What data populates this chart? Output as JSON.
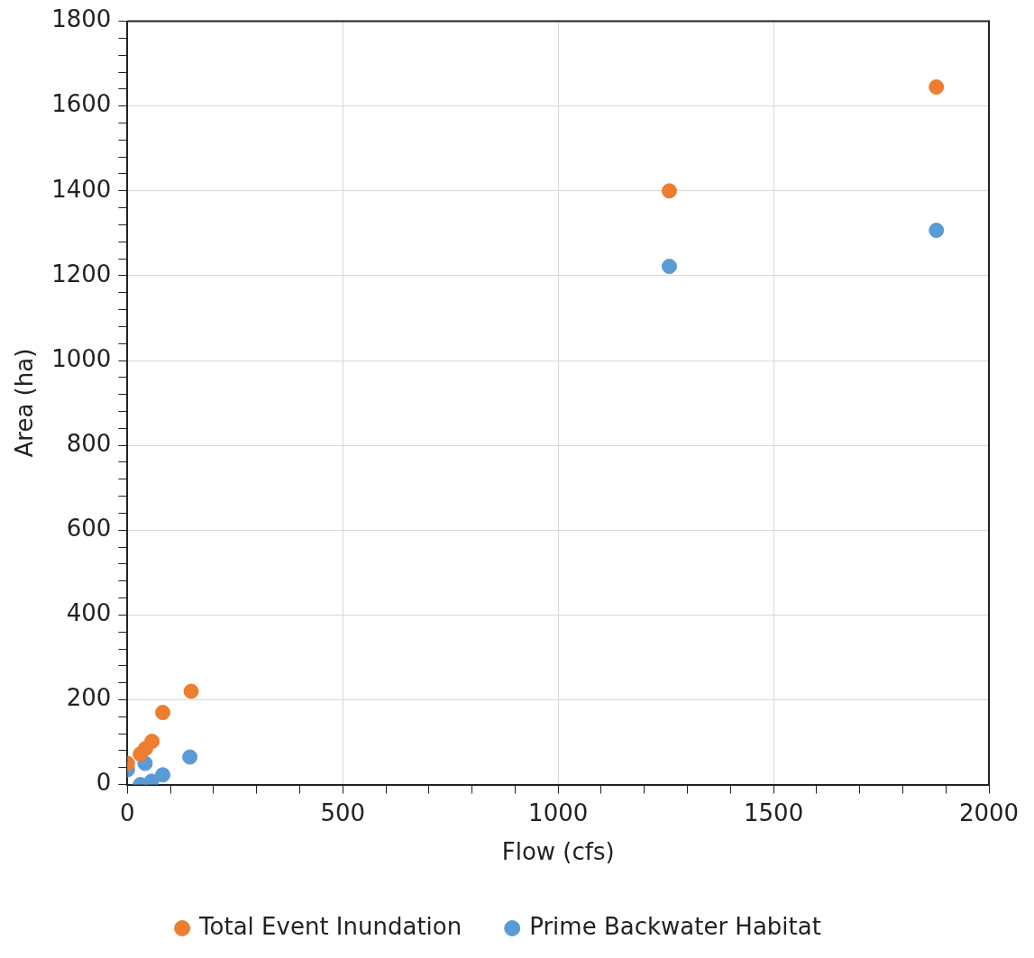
{
  "chart_data": {
    "type": "scatter",
    "xlabel": "Flow (cfs)",
    "ylabel": "Area (ha)",
    "series": [
      {
        "name": "Total Event Inundation",
        "color": "#ed7d31",
        "x": [
          0,
          30,
          42,
          57,
          82,
          148,
          1258,
          1878
        ],
        "values": [
          50,
          72,
          85,
          102,
          170,
          220,
          1400,
          1645
        ]
      },
      {
        "name": "Prime Backwater Habitat",
        "color": "#5b9bd5",
        "x": [
          0,
          30,
          41,
          56,
          82,
          145,
          1258,
          1878
        ],
        "values": [
          35,
          0,
          50,
          8,
          23,
          65,
          1222,
          1307
        ]
      }
    ],
    "xlim": [
      0,
      2000
    ],
    "xticks": [
      0,
      {
        "value": 100,
        "label": null
      },
      {
        "value": 200,
        "label": null
      },
      {
        "value": 300,
        "label": null
      },
      {
        "value": 400,
        "label": null
      },
      500,
      {
        "value": 600,
        "label": null
      },
      {
        "value": 700,
        "label": null
      },
      {
        "value": 800,
        "label": null
      },
      {
        "value": 900,
        "label": null
      },
      1000,
      {
        "value": 1100,
        "label": null
      },
      {
        "value": 1200,
        "label": null
      },
      {
        "value": 1300,
        "label": null
      },
      {
        "value": 1400,
        "label": null
      },
      1500,
      {
        "value": 1600,
        "label": null
      },
      {
        "value": 1700,
        "label": null
      },
      {
        "value": 1800,
        "label": null
      },
      {
        "value": 1900,
        "label": null
      },
      2000
    ],
    "ylim": [
      0,
      1800
    ],
    "yticks": [
      0,
      {
        "value": 40,
        "label": null
      },
      {
        "value": 80,
        "label": null
      },
      {
        "value": 120,
        "label": null
      },
      {
        "value": 160,
        "label": null
      },
      200,
      {
        "value": 240,
        "label": null
      },
      {
        "value": 280,
        "label": null
      },
      {
        "value": 320,
        "label": null
      },
      {
        "value": 360,
        "label": null
      },
      400,
      {
        "value": 440,
        "label": null
      },
      {
        "value": 480,
        "label": null
      },
      {
        "value": 520,
        "label": null
      },
      {
        "value": 560,
        "label": null
      },
      600,
      {
        "value": 640,
        "label": null
      },
      {
        "value": 680,
        "label": null
      },
      {
        "value": 720,
        "label": null
      },
      {
        "value": 760,
        "label": null
      },
      800,
      {
        "value": 840,
        "label": null
      },
      {
        "value": 880,
        "label": null
      },
      {
        "value": 920,
        "label": null
      },
      {
        "value": 960,
        "label": null
      },
      1000,
      {
        "value": 1040,
        "label": null
      },
      {
        "value": 1080,
        "label": null
      },
      {
        "value": 1120,
        "label": null
      },
      {
        "value": 1160,
        "label": null
      },
      1200,
      {
        "value": 1240,
        "label": null
      },
      {
        "value": 1280,
        "label": null
      },
      {
        "value": 1320,
        "label": null
      },
      {
        "value": 1360,
        "label": null
      },
      1400,
      {
        "value": 1440,
        "label": null
      },
      {
        "value": 1480,
        "label": null
      },
      {
        "value": 1520,
        "label": null
      },
      {
        "value": 1560,
        "label": null
      },
      1600,
      {
        "value": 1640,
        "label": null
      },
      {
        "value": 1680,
        "label": null
      },
      {
        "value": 1720,
        "label": null
      },
      {
        "value": 1760,
        "label": null
      },
      1800
    ],
    "grid": true,
    "legend": "bottom",
    "marker": "circle"
  }
}
